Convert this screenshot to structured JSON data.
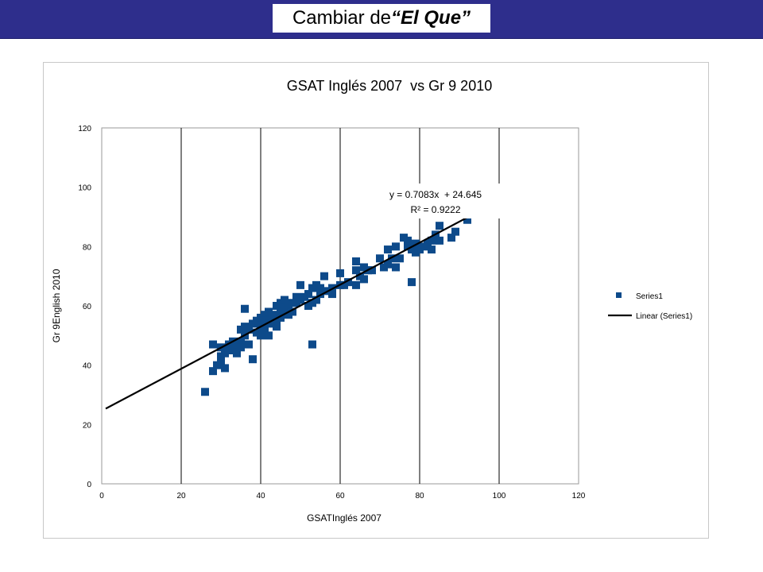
{
  "slide": {
    "title_prefix": "Cambiar de ",
    "title_emphasis": "“El Que”"
  },
  "colors": {
    "header_bar": "#2e2e8c",
    "marker": "#0d4a8a",
    "trendline": "#000000"
  },
  "chart_data": {
    "type": "scatter",
    "title": "GSAT Inglés 2007  vs Gr 9 2010",
    "xlabel": "GSATInglés 2007",
    "ylabel": "Gr 9English 2010",
    "xlim": [
      0,
      120
    ],
    "ylim": [
      0,
      120
    ],
    "x_ticks": [
      "0",
      "20",
      "40",
      "60",
      "80",
      "100",
      "120"
    ],
    "y_ticks": [
      "0",
      "20",
      "40",
      "60",
      "80",
      "100",
      "120"
    ],
    "grid": "vertical major gridlines",
    "legend_position": "right",
    "legend": [
      "Series1",
      "Linear (Series1)"
    ],
    "trendline": {
      "name": "Linear (Series1)",
      "slope": 0.7083,
      "intercept": 24.645,
      "equation_label": "y = 0.7083x  + 24.645",
      "r2_label": "R² = 0.9222",
      "x_range": [
        1,
        100
      ]
    },
    "series": [
      {
        "name": "Series1",
        "points": [
          [
            26,
            31
          ],
          [
            28,
            38
          ],
          [
            28,
            47
          ],
          [
            29,
            40
          ],
          [
            30,
            43
          ],
          [
            30,
            46
          ],
          [
            30,
            41
          ],
          [
            31,
            39
          ],
          [
            31,
            44
          ],
          [
            32,
            45
          ],
          [
            32,
            47
          ],
          [
            33,
            48
          ],
          [
            33,
            46
          ],
          [
            34,
            44
          ],
          [
            34,
            47
          ],
          [
            35,
            48
          ],
          [
            35,
            46
          ],
          [
            35,
            52
          ],
          [
            36,
            50
          ],
          [
            36,
            59
          ],
          [
            36,
            53
          ],
          [
            37,
            47
          ],
          [
            37,
            52
          ],
          [
            38,
            54
          ],
          [
            38,
            42
          ],
          [
            39,
            51
          ],
          [
            39,
            55
          ],
          [
            40,
            50
          ],
          [
            40,
            53
          ],
          [
            40,
            56
          ],
          [
            41,
            57
          ],
          [
            41,
            55
          ],
          [
            41,
            52
          ],
          [
            42,
            58
          ],
          [
            42,
            54
          ],
          [
            42,
            50
          ],
          [
            43,
            56
          ],
          [
            43,
            57
          ],
          [
            44,
            55
          ],
          [
            44,
            53
          ],
          [
            44,
            60
          ],
          [
            45,
            58
          ],
          [
            45,
            61
          ],
          [
            45,
            56
          ],
          [
            46,
            62
          ],
          [
            46,
            59
          ],
          [
            47,
            60
          ],
          [
            47,
            57
          ],
          [
            48,
            61
          ],
          [
            48,
            58
          ],
          [
            49,
            63
          ],
          [
            49,
            61
          ],
          [
            50,
            62
          ],
          [
            50,
            67
          ],
          [
            51,
            63
          ],
          [
            52,
            60
          ],
          [
            52,
            64
          ],
          [
            53,
            61
          ],
          [
            53,
            66
          ],
          [
            53,
            47
          ],
          [
            54,
            62
          ],
          [
            54,
            67
          ],
          [
            55,
            64
          ],
          [
            55,
            66
          ],
          [
            56,
            70
          ],
          [
            57,
            65
          ],
          [
            58,
            66
          ],
          [
            58,
            64
          ],
          [
            60,
            67
          ],
          [
            60,
            71
          ],
          [
            61,
            67
          ],
          [
            62,
            68
          ],
          [
            64,
            67
          ],
          [
            64,
            72
          ],
          [
            64,
            75
          ],
          [
            65,
            70
          ],
          [
            66,
            69
          ],
          [
            66,
            73
          ],
          [
            67,
            72
          ],
          [
            68,
            72
          ],
          [
            70,
            76
          ],
          [
            71,
            73
          ],
          [
            72,
            74
          ],
          [
            72,
            79
          ],
          [
            73,
            76
          ],
          [
            74,
            73
          ],
          [
            74,
            80
          ],
          [
            75,
            76
          ],
          [
            76,
            83
          ],
          [
            77,
            80
          ],
          [
            77,
            82
          ],
          [
            78,
            68
          ],
          [
            78,
            79
          ],
          [
            79,
            81
          ],
          [
            79,
            78
          ],
          [
            80,
            79
          ],
          [
            81,
            80
          ],
          [
            82,
            81
          ],
          [
            83,
            82
          ],
          [
            83,
            79
          ],
          [
            84,
            84
          ],
          [
            85,
            82
          ],
          [
            85,
            87
          ],
          [
            88,
            83
          ],
          [
            89,
            85
          ],
          [
            92,
            89
          ]
        ]
      }
    ]
  }
}
